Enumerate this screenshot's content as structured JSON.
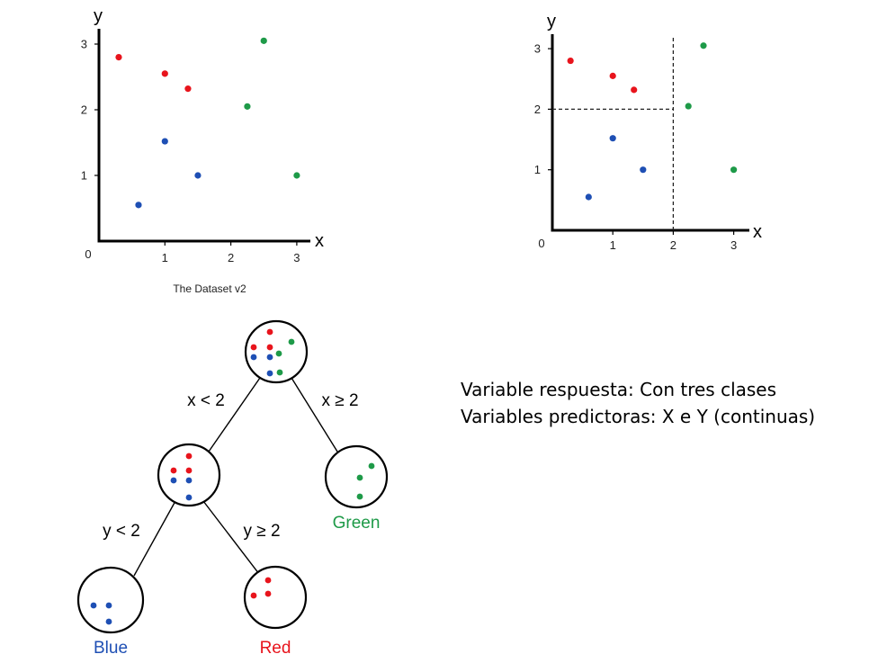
{
  "colors": {
    "red": "#e8141c",
    "blue": "#1e4fb4",
    "green": "#1e9a48",
    "axis": "#000000"
  },
  "chart_data": [
    {
      "type": "scatter",
      "title": "",
      "caption": "The Dataset v2",
      "xlabel": "x",
      "ylabel": "y",
      "xlim": [
        0,
        3.3
      ],
      "ylim": [
        0,
        3.3
      ],
      "xticks": [
        "1",
        "2",
        "3"
      ],
      "yticks": [
        "1",
        "2",
        "3"
      ],
      "origin_label": "0",
      "grid": false,
      "series": [
        {
          "color": "red",
          "x": [
            0.3,
            1.0,
            1.35
          ],
          "y": [
            2.8,
            2.55,
            2.32
          ]
        },
        {
          "color": "blue",
          "x": [
            0.6,
            1.0,
            1.5
          ],
          "y": [
            0.55,
            1.52,
            1.0
          ]
        },
        {
          "color": "green",
          "x": [
            2.25,
            2.5,
            3.0
          ],
          "y": [
            2.05,
            3.05,
            1.0
          ]
        }
      ]
    },
    {
      "type": "scatter",
      "title": "",
      "caption": "",
      "xlabel": "x",
      "ylabel": "y",
      "xlim": [
        0,
        3.3
      ],
      "ylim": [
        0,
        3.3
      ],
      "xticks": [
        "1",
        "2",
        "3"
      ],
      "yticks": [
        "1",
        "2",
        "3"
      ],
      "origin_label": "0",
      "grid": false,
      "split_lines": [
        {
          "orientation": "vertical",
          "x": 2,
          "style": "dashed"
        },
        {
          "orientation": "horizontal",
          "y": 2,
          "x_from": 0,
          "x_to": 2,
          "style": "dashed"
        }
      ],
      "series": [
        {
          "color": "red",
          "x": [
            0.3,
            1.0,
            1.35
          ],
          "y": [
            2.8,
            2.55,
            2.32
          ]
        },
        {
          "color": "blue",
          "x": [
            0.6,
            1.0,
            1.5
          ],
          "y": [
            0.55,
            1.52,
            1.0
          ]
        },
        {
          "color": "green",
          "x": [
            2.25,
            2.5,
            3.0
          ],
          "y": [
            2.05,
            3.05,
            1.0
          ]
        }
      ]
    }
  ],
  "tree": {
    "nodes": [
      {
        "id": "root",
        "label": "",
        "point_colors": [
          "red",
          "red",
          "red",
          "green",
          "green",
          "blue",
          "blue",
          "blue",
          "green"
        ]
      },
      {
        "id": "left",
        "label": "",
        "point_colors": [
          "red",
          "red",
          "red",
          "blue",
          "blue",
          "blue"
        ]
      },
      {
        "id": "right",
        "label": "Green",
        "label_color": "green",
        "point_colors": [
          "green",
          "green",
          "green"
        ]
      },
      {
        "id": "ll",
        "label": "Blue",
        "label_color": "blue",
        "point_colors": [
          "blue",
          "blue",
          "blue"
        ]
      },
      {
        "id": "lr",
        "label": "Red",
        "label_color": "red",
        "point_colors": [
          "red",
          "red",
          "red"
        ]
      }
    ],
    "edges": [
      {
        "from": "root",
        "to": "left",
        "condition": "x < 2"
      },
      {
        "from": "root",
        "to": "right",
        "condition": "x ≥ 2"
      },
      {
        "from": "left",
        "to": "ll",
        "condition": "y < 2"
      },
      {
        "from": "left",
        "to": "lr",
        "condition": "y ≥ 2"
      }
    ]
  },
  "description": {
    "line1": "Variable respuesta: Con tres clases",
    "line2": "Variables predictoras: X e Y (continuas)"
  }
}
